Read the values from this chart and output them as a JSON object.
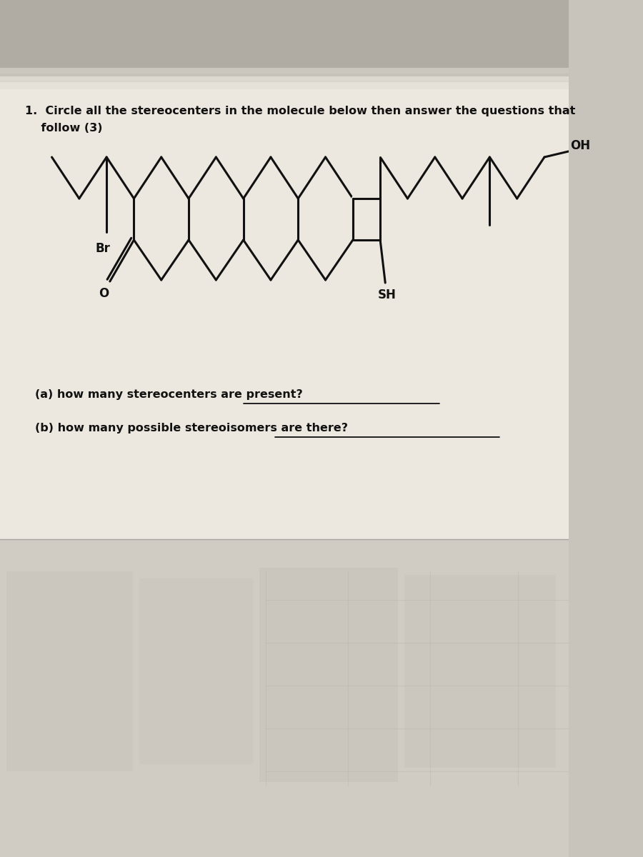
{
  "title_line1": "1.  Circle all the stereocenters in the molecule below then answer the questions that",
  "title_line2": "    follow (3)",
  "question_a": "(a) how many stereocenters are present?",
  "question_b": "(b) how many possible stereoisomers are there?",
  "bg_top_color": "#c8c4bc",
  "paper_color": "#ede8e0",
  "paper_color2": "#e8e4dc",
  "text_color": "#111111",
  "molecule_color": "#111111",
  "title_fontsize": 11.5,
  "question_fontsize": 11.5,
  "lw": 2.2
}
